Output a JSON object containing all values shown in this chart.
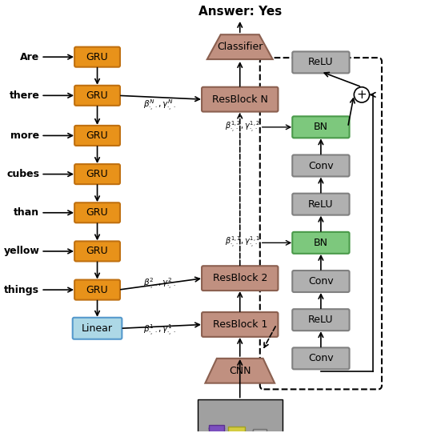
{
  "title": "Answer: Yes",
  "words": [
    "Are",
    "there",
    "more",
    "cubes",
    "than",
    "yellow",
    "things"
  ],
  "gru_color": "#E8921A",
  "gru_edge_color": "#C07010",
  "linear_color": "#ADD8E6",
  "linear_edge_color": "#5599CC",
  "resblock_color": "#C09080",
  "resblock_edge_color": "#8B6050",
  "classifier_color": "#C09080",
  "classifier_edge_color": "#8B6050",
  "cnn_color": "#C09080",
  "cnn_edge_color": "#8B6050",
  "bn_color": "#7DC87D",
  "bn_edge_color": "#4A9A4A",
  "conv_color": "#B0B0B0",
  "conv_edge_color": "#808080",
  "relu_color": "#B0B0B0",
  "relu_edge_color": "#808080",
  "bg_color": "#FFFFFF"
}
